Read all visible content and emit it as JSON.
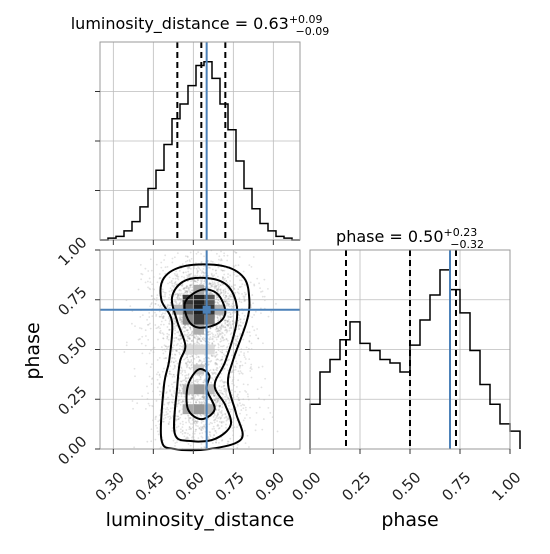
{
  "chart_data": [
    {
      "type": "histogram",
      "panel": "luminosity_distance-marginal",
      "title": "luminosity_distance = 0.63",
      "title_sup": "+0.09",
      "title_sub": "−0.09",
      "median": 0.63,
      "quantiles": [
        0.54,
        0.63,
        0.72
      ],
      "truth": 0.65,
      "xlim": [
        0.25,
        1.0
      ],
      "grid": true,
      "bins": [
        [
          0.25,
          0.0
        ],
        [
          0.28,
          0.01
        ],
        [
          0.31,
          0.02
        ],
        [
          0.34,
          0.05
        ],
        [
          0.37,
          0.1
        ],
        [
          0.4,
          0.18
        ],
        [
          0.43,
          0.28
        ],
        [
          0.46,
          0.38
        ],
        [
          0.49,
          0.52
        ],
        [
          0.52,
          0.66
        ],
        [
          0.55,
          0.74
        ],
        [
          0.58,
          0.84
        ],
        [
          0.61,
          0.95
        ],
        [
          0.64,
          0.97
        ],
        [
          0.67,
          0.88
        ],
        [
          0.7,
          0.74
        ],
        [
          0.73,
          0.6
        ],
        [
          0.76,
          0.43
        ],
        [
          0.79,
          0.28
        ],
        [
          0.82,
          0.17
        ],
        [
          0.85,
          0.09
        ],
        [
          0.88,
          0.05
        ],
        [
          0.91,
          0.02
        ],
        [
          0.94,
          0.01
        ],
        [
          0.97,
          0.0
        ]
      ]
    },
    {
      "type": "histogram",
      "panel": "phase-marginal",
      "title": "phase = 0.50",
      "title_sup": "+0.23",
      "title_sub": "−0.32",
      "median": 0.5,
      "quantiles": [
        0.18,
        0.5,
        0.73
      ],
      "truth": 0.7,
      "xlim": [
        0.0,
        1.0
      ],
      "grid": true,
      "bins": [
        [
          0.0,
          0.25
        ],
        [
          0.05,
          0.43
        ],
        [
          0.1,
          0.5
        ],
        [
          0.15,
          0.61
        ],
        [
          0.2,
          0.71
        ],
        [
          0.25,
          0.59
        ],
        [
          0.3,
          0.55
        ],
        [
          0.35,
          0.5
        ],
        [
          0.4,
          0.48
        ],
        [
          0.45,
          0.43
        ],
        [
          0.5,
          0.58
        ],
        [
          0.55,
          0.72
        ],
        [
          0.6,
          0.86
        ],
        [
          0.65,
          1.0
        ],
        [
          0.7,
          0.89
        ],
        [
          0.75,
          0.76
        ],
        [
          0.8,
          0.55
        ],
        [
          0.85,
          0.36
        ],
        [
          0.9,
          0.25
        ],
        [
          0.95,
          0.14
        ],
        [
          1.0,
          0.1
        ]
      ]
    },
    {
      "type": "contour",
      "panel": "luminosity_distance-vs-phase",
      "xlabel": "luminosity_distance",
      "ylabel": "phase",
      "xlim": [
        0.25,
        1.0
      ],
      "ylim": [
        0.0,
        1.0
      ],
      "truth": {
        "x": 0.65,
        "y": 0.7
      },
      "grid": true,
      "contours": [
        {
          "level": "outer",
          "points": [
            [
              0.48,
              0.05
            ],
            [
              0.53,
              0.0
            ],
            [
              0.66,
              0.0
            ],
            [
              0.78,
              0.05
            ],
            [
              0.76,
              0.18
            ],
            [
              0.73,
              0.33
            ],
            [
              0.75,
              0.45
            ],
            [
              0.8,
              0.64
            ],
            [
              0.81,
              0.75
            ],
            [
              0.79,
              0.86
            ],
            [
              0.71,
              0.92
            ],
            [
              0.57,
              0.92
            ],
            [
              0.49,
              0.86
            ],
            [
              0.48,
              0.75
            ],
            [
              0.52,
              0.64
            ],
            [
              0.51,
              0.45
            ],
            [
              0.49,
              0.32
            ]
          ]
        },
        {
          "level": "middle",
          "points": [
            [
              0.53,
              0.08
            ],
            [
              0.59,
              0.04
            ],
            [
              0.68,
              0.05
            ],
            [
              0.74,
              0.12
            ],
            [
              0.72,
              0.22
            ],
            [
              0.68,
              0.32
            ],
            [
              0.72,
              0.44
            ],
            [
              0.76,
              0.62
            ],
            [
              0.76,
              0.74
            ],
            [
              0.72,
              0.83
            ],
            [
              0.64,
              0.86
            ],
            [
              0.56,
              0.84
            ],
            [
              0.52,
              0.76
            ],
            [
              0.54,
              0.64
            ],
            [
              0.57,
              0.52
            ],
            [
              0.55,
              0.44
            ],
            [
              0.54,
              0.32
            ]
          ]
        },
        {
          "level": "lower-inner",
          "points": [
            [
              0.58,
              0.2
            ],
            [
              0.63,
              0.15
            ],
            [
              0.68,
              0.2
            ],
            [
              0.65,
              0.3
            ],
            [
              0.66,
              0.37
            ],
            [
              0.62,
              0.4
            ],
            [
              0.58,
              0.32
            ]
          ]
        },
        {
          "level": "upper-inner",
          "points": [
            [
              0.58,
              0.65
            ],
            [
              0.62,
              0.61
            ],
            [
              0.69,
              0.63
            ],
            [
              0.72,
              0.69
            ],
            [
              0.69,
              0.78
            ],
            [
              0.63,
              0.8
            ],
            [
              0.57,
              0.74
            ]
          ]
        }
      ],
      "density": [
        {
          "x": 0.58,
          "y": 0.75,
          "intensity": 0.86
        },
        {
          "x": 0.62,
          "y": 0.75,
          "intensity": 0.98
        },
        {
          "x": 0.66,
          "y": 0.75,
          "intensity": 0.74
        },
        {
          "x": 0.58,
          "y": 0.7,
          "intensity": 0.72
        },
        {
          "x": 0.62,
          "y": 0.7,
          "intensity": 1.0
        },
        {
          "x": 0.66,
          "y": 0.7,
          "intensity": 0.9
        },
        {
          "x": 0.58,
          "y": 0.65,
          "intensity": 0.48
        },
        {
          "x": 0.62,
          "y": 0.65,
          "intensity": 0.86
        },
        {
          "x": 0.66,
          "y": 0.65,
          "intensity": 0.58
        },
        {
          "x": 0.54,
          "y": 0.7,
          "intensity": 0.28
        },
        {
          "x": 0.7,
          "y": 0.7,
          "intensity": 0.3
        },
        {
          "x": 0.62,
          "y": 0.8,
          "intensity": 0.35
        },
        {
          "x": 0.62,
          "y": 0.6,
          "intensity": 0.32
        },
        {
          "x": 0.58,
          "y": 0.3,
          "intensity": 0.24
        },
        {
          "x": 0.62,
          "y": 0.3,
          "intensity": 0.4
        },
        {
          "x": 0.66,
          "y": 0.3,
          "intensity": 0.24
        },
        {
          "x": 0.58,
          "y": 0.2,
          "intensity": 0.34
        },
        {
          "x": 0.62,
          "y": 0.2,
          "intensity": 0.42
        },
        {
          "x": 0.66,
          "y": 0.2,
          "intensity": 0.3
        },
        {
          "x": 0.62,
          "y": 0.4,
          "intensity": 0.2
        },
        {
          "x": 0.62,
          "y": 0.5,
          "intensity": 0.12
        },
        {
          "x": 0.58,
          "y": 0.5,
          "intensity": 0.1
        },
        {
          "x": 0.66,
          "y": 0.5,
          "intensity": 0.1
        }
      ]
    }
  ],
  "axes": {
    "distance_ticks": [
      "0.30",
      "0.45",
      "0.60",
      "0.75",
      "0.90"
    ],
    "phase_ticks": [
      "0.00",
      "0.25",
      "0.50",
      "0.75",
      "1.00"
    ],
    "xlabel_left": "luminosity_distance",
    "xlabel_right": "phase",
    "ylabel_left": "phase"
  },
  "colors": {
    "truth": "#4c81b8",
    "line": "#000000",
    "grid": "#bdbdbd",
    "frame": "#999999"
  },
  "icons": {
    "truth_marker": "square-marker-icon"
  }
}
